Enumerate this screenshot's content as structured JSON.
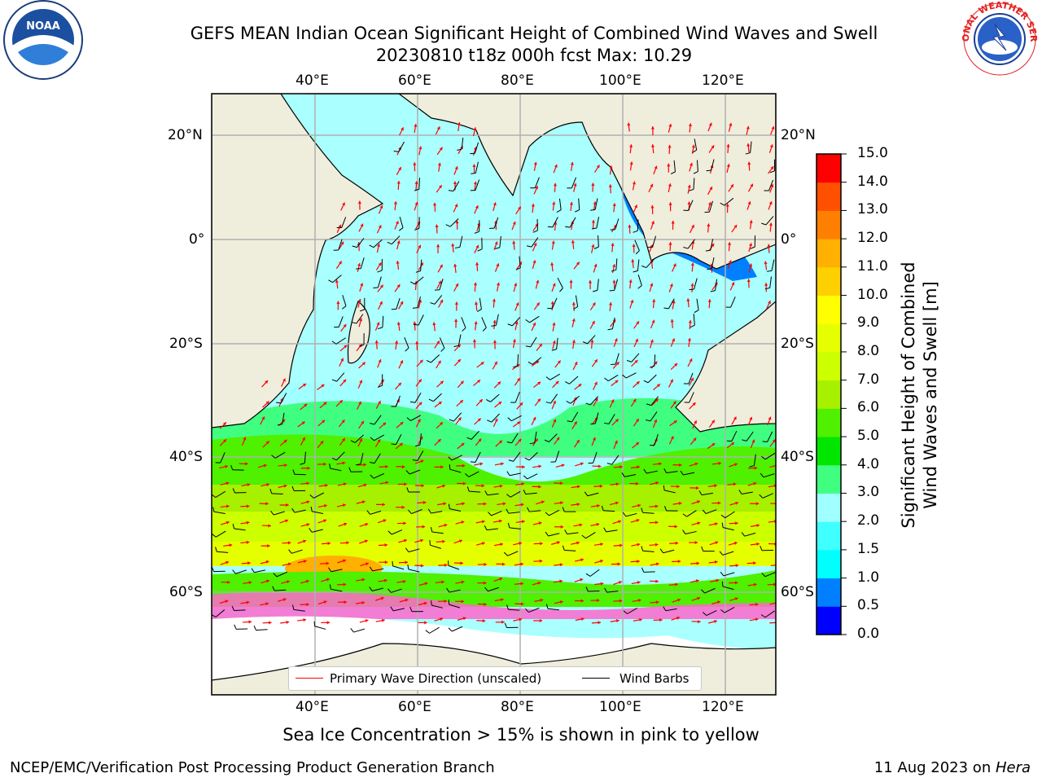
{
  "header": {
    "title_line1": "GEFS MEAN Indian Ocean Significant Height of Combined Wind Waves and Swell",
    "title_line2": "20230810 t18z 000h fcst   Max: 10.29"
  },
  "logos": {
    "noaa_text": "NOAA",
    "noaa_ring_text": "NATIONAL OCEANIC AND ATMOSPHERIC ADMINISTRATION · U.S. DEPARTMENT OF COMMERCE",
    "nws_ring_text": "NATIONAL WEATHER SERVICE"
  },
  "map": {
    "lon_labels": [
      "40°E",
      "60°E",
      "80°E",
      "100°E",
      "120°E"
    ],
    "lat_labels": [
      "20°N",
      "0°",
      "20°S",
      "40°S",
      "60°S"
    ],
    "lon_range": [
      20,
      130
    ],
    "lat_range": [
      -72,
      28
    ],
    "legend": {
      "wave_label": "Primary Wave Direction (unscaled)",
      "wind_label": "Wind Barbs",
      "wave_color": "#ff0000",
      "wind_color": "#000000"
    },
    "land_color": "#efeddc",
    "ice_note": "Sea Ice Concentration > 15% is shown in pink to yellow"
  },
  "colorbar": {
    "title_line1": "Significant Height of Combined",
    "title_line2": "Wind Waves and Swell [m]",
    "ticks": [
      "0.0",
      "0.5",
      "1.0",
      "1.5",
      "2.0",
      "3.0",
      "4.0",
      "5.0",
      "6.0",
      "7.0",
      "8.0",
      "9.0",
      "10.0",
      "11.0",
      "12.0",
      "13.0",
      "14.0",
      "15.0"
    ],
    "colors": [
      "#0000ff",
      "#0080ff",
      "#00ffff",
      "#40ffff",
      "#a0ffff",
      "#40ff80",
      "#00e600",
      "#4ff000",
      "#a6f000",
      "#ccff00",
      "#e6ff00",
      "#ffff00",
      "#ffd000",
      "#ffb000",
      "#ff8000",
      "#ff5000",
      "#ff0000"
    ]
  },
  "footer": {
    "left": "NCEP/EMC/Verification Post Processing Product Generation Branch",
    "right_prefix": "11 Aug 2023 on ",
    "right_host": "Hera"
  }
}
